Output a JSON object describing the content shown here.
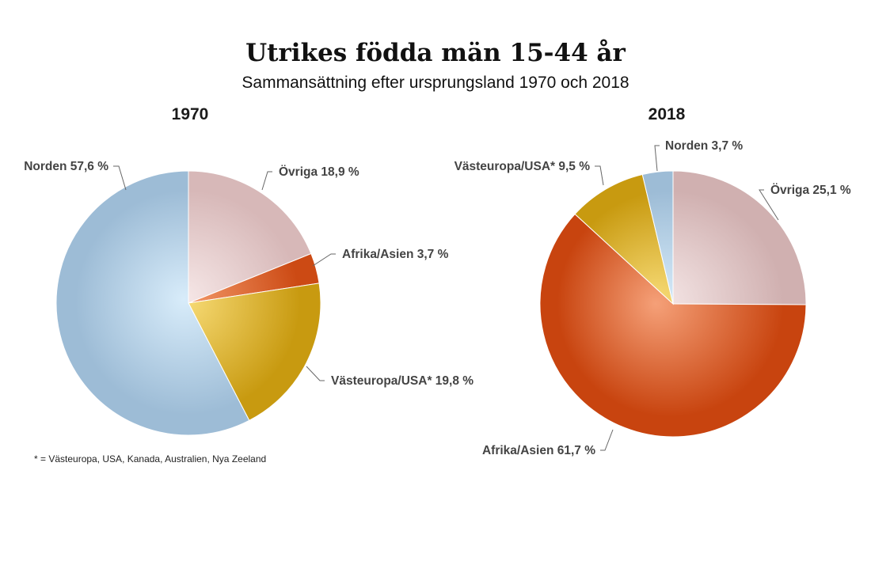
{
  "title": "Utrikes födda män 15-44 år",
  "subtitle": "Sammansättning efter ursprungsland 1970 och 2018",
  "footnote": "* = Västeuropa, USA, Kanada, Australien, Nya Zeeland",
  "chart_data": [
    {
      "type": "pie",
      "title": "1970",
      "slices": [
        {
          "name": "Övriga",
          "value": 18.9,
          "label": "Övriga 18,9 %",
          "color": "#d7b8b8",
          "highlight": "#f6e7e7"
        },
        {
          "name": "Afrika/Asien",
          "value": 3.7,
          "label": "Afrika/Asien 3,7 %",
          "color": "#cc4a14",
          "highlight": "#f39a6a"
        },
        {
          "name": "Västeuropa/USA*",
          "value": 19.8,
          "label": "Västeuropa/USA* 19,8 %",
          "color": "#c89a10",
          "highlight": "#f8dc78"
        },
        {
          "name": "Norden",
          "value": 57.6,
          "label": "Norden 57,6 %",
          "color": "#9dbcd6",
          "highlight": "#d8ecfa"
        }
      ]
    },
    {
      "type": "pie",
      "title": "2018",
      "slices": [
        {
          "name": "Övriga",
          "value": 25.1,
          "label": "Övriga 25,1 %",
          "color": "#d0b0b0",
          "highlight": "#f6e8e8"
        },
        {
          "name": "Afrika/Asien",
          "value": 61.7,
          "label": "Afrika/Asien 61,7 %",
          "color": "#c8440f",
          "highlight": "#f5a078"
        },
        {
          "name": "Västeuropa/USA*",
          "value": 9.5,
          "label": "Västeuropa/USA* 9,5 %",
          "color": "#c89a10",
          "highlight": "#f8dc78"
        },
        {
          "name": "Norden",
          "value": 3.7,
          "label": "Norden 3,7 %",
          "color": "#9dbcd6",
          "highlight": "#d8ecfa"
        }
      ]
    }
  ]
}
